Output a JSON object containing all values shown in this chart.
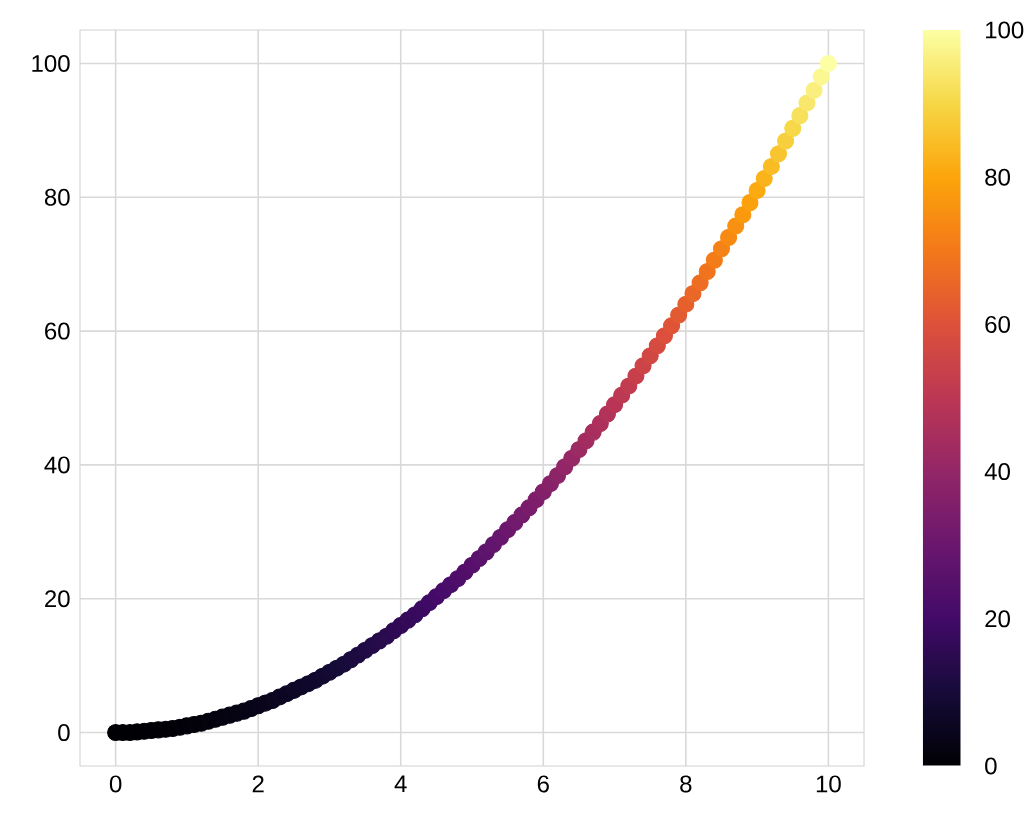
{
  "chart_data": {
    "type": "scatter",
    "marker": "circle",
    "grid": true,
    "x": [
      0,
      0.1,
      0.2,
      0.3,
      0.4,
      0.5,
      0.6,
      0.7,
      0.8,
      0.9,
      1,
      1.1,
      1.2,
      1.3,
      1.4,
      1.5,
      1.6,
      1.7,
      1.8,
      1.9,
      2,
      2.1,
      2.2,
      2.3,
      2.4,
      2.5,
      2.6,
      2.7,
      2.8,
      2.9,
      3,
      3.1,
      3.2,
      3.3,
      3.4,
      3.5,
      3.6,
      3.7,
      3.8,
      3.9,
      4,
      4.1,
      4.2,
      4.3,
      4.4,
      4.5,
      4.6,
      4.7,
      4.8,
      4.9,
      5,
      5.1,
      5.2,
      5.3,
      5.4,
      5.5,
      5.6,
      5.7,
      5.8,
      5.9,
      6,
      6.1,
      6.2,
      6.3,
      6.4,
      6.5,
      6.6,
      6.7,
      6.8,
      6.9,
      7,
      7.1,
      7.2,
      7.3,
      7.4,
      7.5,
      7.6,
      7.7,
      7.8,
      7.9,
      8,
      8.1,
      8.2,
      8.3,
      8.4,
      8.5,
      8.6,
      8.7,
      8.8,
      8.9,
      9,
      9.1,
      9.2,
      9.3,
      9.4,
      9.5,
      9.6,
      9.7,
      9.8,
      9.9,
      10
    ],
    "values": [
      0,
      0,
      0,
      0.1,
      0.2,
      0.3,
      0.4,
      0.5,
      0.6,
      0.8,
      1,
      1.2,
      1.4,
      1.7,
      2,
      2.3,
      2.6,
      2.9,
      3.2,
      3.6,
      4,
      4.4,
      4.8,
      5.3,
      5.8,
      6.3,
      6.8,
      7.3,
      7.8,
      8.4,
      9,
      9.6,
      10.2,
      10.9,
      11.6,
      12.3,
      13,
      13.7,
      14.4,
      15.2,
      16,
      16.8,
      17.6,
      18.5,
      19.4,
      20.3,
      21.2,
      22.1,
      23,
      24,
      25,
      26,
      27,
      28.1,
      29.2,
      30.3,
      31.4,
      32.5,
      33.6,
      34.8,
      36,
      37.2,
      38.4,
      39.7,
      41,
      42.3,
      43.6,
      44.9,
      46.2,
      47.6,
      49,
      50.4,
      51.8,
      53.3,
      54.8,
      56.3,
      57.8,
      59.3,
      60.8,
      62.4,
      64,
      65.6,
      67.2,
      68.9,
      70.6,
      72.3,
      74,
      75.7,
      77.4,
      79.2,
      81,
      82.8,
      84.6,
      86.5,
      88.4,
      90.3,
      92.2,
      94.1,
      96,
      98,
      100
    ],
    "cvalues": [
      0,
      0,
      0,
      0.1,
      0.2,
      0.3,
      0.4,
      0.5,
      0.6,
      0.8,
      1,
      1.2,
      1.4,
      1.7,
      2,
      2.3,
      2.6,
      2.9,
      3.2,
      3.6,
      4,
      4.4,
      4.8,
      5.3,
      5.8,
      6.3,
      6.8,
      7.3,
      7.8,
      8.4,
      9,
      9.6,
      10.2,
      10.9,
      11.6,
      12.3,
      13,
      13.7,
      14.4,
      15.2,
      16,
      16.8,
      17.6,
      18.5,
      19.4,
      20.3,
      21.2,
      22.1,
      23,
      24,
      25,
      26,
      27,
      28.1,
      29.2,
      30.3,
      31.4,
      32.5,
      33.6,
      34.8,
      36,
      37.2,
      38.4,
      39.7,
      41,
      42.3,
      43.6,
      44.9,
      46.2,
      47.6,
      49,
      50.4,
      51.8,
      53.3,
      54.8,
      56.3,
      57.8,
      59.3,
      60.8,
      62.4,
      64,
      65.6,
      67.2,
      68.9,
      70.6,
      72.3,
      74,
      75.7,
      77.4,
      79.2,
      81,
      82.8,
      84.6,
      86.5,
      88.4,
      90.3,
      92.2,
      94.1,
      96,
      98,
      100
    ],
    "xlim": [
      -0.5,
      10.5
    ],
    "xticks": [
      0,
      2,
      4,
      6,
      8,
      10
    ],
    "ylim": [
      -5,
      105
    ],
    "yticks": [
      0,
      20,
      40,
      60,
      80,
      100
    ],
    "clim": [
      0,
      100
    ],
    "cticks": [
      0,
      20,
      40,
      60,
      80,
      100
    ]
  }
}
